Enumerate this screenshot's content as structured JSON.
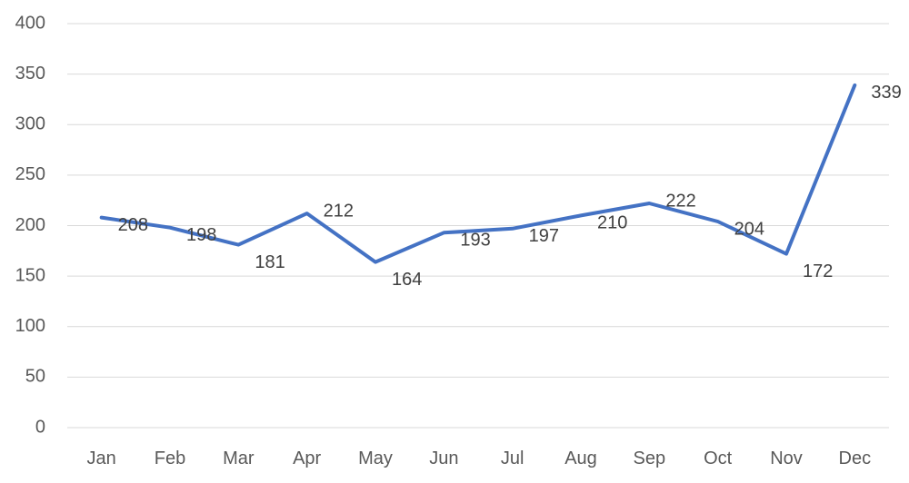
{
  "chart_data": {
    "type": "line",
    "categories": [
      "Jan",
      "Feb",
      "Mar",
      "Apr",
      "May",
      "Jun",
      "Jul",
      "Aug",
      "Sep",
      "Oct",
      "Nov",
      "Dec"
    ],
    "series": [
      {
        "values": [
          208,
          198,
          181,
          212,
          164,
          193,
          197,
          210,
          222,
          204,
          172,
          339
        ],
        "color": "#4472c4"
      }
    ],
    "data_labels": [
      "208",
      "198",
      "181",
      "212",
      "164",
      "193",
      "197",
      "210",
      "222",
      "204",
      "172",
      "339"
    ],
    "ylim": [
      0,
      400
    ],
    "yticks": [
      "0",
      "50",
      "100",
      "150",
      "200",
      "250",
      "300",
      "350",
      "400"
    ],
    "grid": true,
    "legend": "none",
    "title": "",
    "xlabel": "",
    "ylabel": ""
  }
}
